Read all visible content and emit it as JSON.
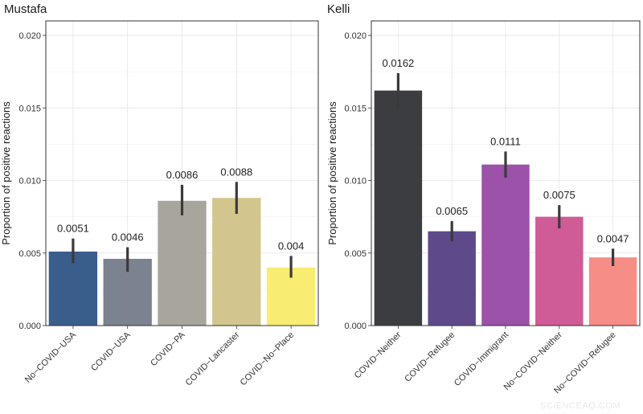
{
  "watermark": "SCIENCEAQ.COM",
  "chart_data": [
    {
      "type": "bar",
      "title": "Mustafa",
      "ylabel": "Proportion of positive reactions",
      "xlabel": "",
      "ylim": [
        0,
        0.021
      ],
      "yticks": [
        0,
        0.005,
        0.01,
        0.015,
        0.02
      ],
      "ytick_labels": [
        "0.000",
        "0.005",
        "0.010",
        "0.015",
        "0.020"
      ],
      "categories": [
        "No−COVID−USA",
        "COVID−USA",
        "COVID−PA",
        "COVID−Lancaster",
        "COVID−No−Place"
      ],
      "values": [
        0.0051,
        0.0046,
        0.0086,
        0.0088,
        0.004
      ],
      "value_labels": [
        "0.0051",
        "0.0046",
        "0.0086",
        "0.0088",
        "0.004"
      ],
      "errors": [
        [
          0.0043,
          0.006
        ],
        [
          0.0037,
          0.0054
        ],
        [
          0.0076,
          0.0097
        ],
        [
          0.0077,
          0.0099
        ],
        [
          0.0033,
          0.0048
        ]
      ],
      "colors": [
        "#3a5e8c",
        "#7b8290",
        "#a7a59c",
        "#d2c68e",
        "#f8ec72"
      ],
      "grid": true
    },
    {
      "type": "bar",
      "title": "Kelli",
      "ylabel": "Proportion of positive reactions",
      "xlabel": "",
      "ylim": [
        0,
        0.021
      ],
      "yticks": [
        0,
        0.005,
        0.01,
        0.015,
        0.02
      ],
      "ytick_labels": [
        "0.000",
        "0.005",
        "0.010",
        "0.015",
        "0.020"
      ],
      "categories": [
        "COVID−Neither",
        "COVID−Refugee",
        "COVID−Immigrant",
        "No−COVID−Neither",
        "No−COVID−Refugee"
      ],
      "values": [
        0.0162,
        0.0065,
        0.0111,
        0.0075,
        0.0047
      ],
      "value_labels": [
        "0.0162",
        "0.0065",
        "0.0111",
        "0.0075",
        "0.0047"
      ],
      "errors": [
        [
          0.015,
          0.0174
        ],
        [
          0.0058,
          0.0072
        ],
        [
          0.0102,
          0.012
        ],
        [
          0.0067,
          0.0083
        ],
        [
          0.0041,
          0.0053
        ]
      ],
      "colors": [
        "#3b3d40",
        "#5e4a8a",
        "#9b52a8",
        "#cf5b97",
        "#f68d86"
      ],
      "grid": true
    }
  ]
}
